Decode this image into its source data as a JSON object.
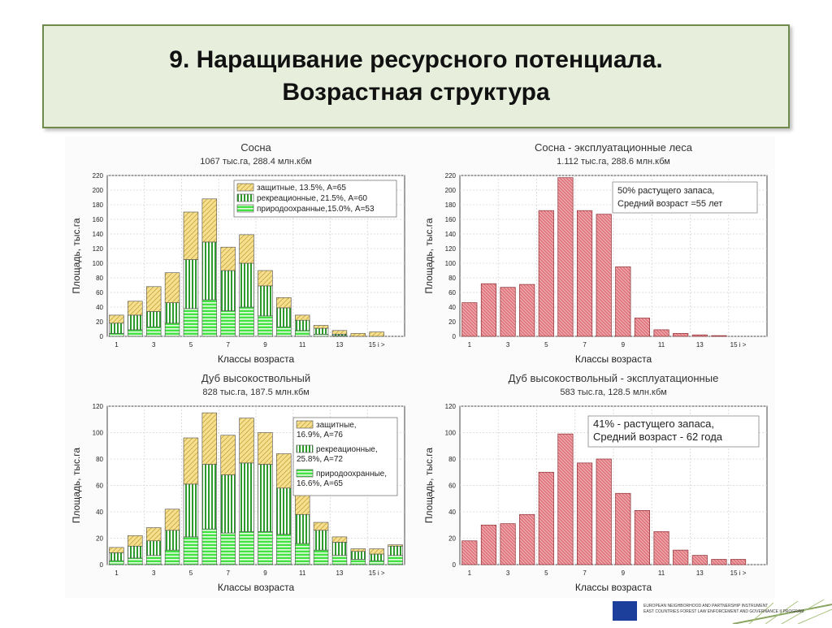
{
  "header": {
    "line1": "9. Наращивание ресурсного потенциала.",
    "line2": "Возрастная структура"
  },
  "footer": {
    "line1": "EUROPEAN NEIGHBORHOOD AND PARTNERSHIP INSTRUMENT",
    "line2": "EAST COUNTRIES FOREST LAW ENFORCEMENT AND GOVERNANCE II PROGRAM"
  },
  "colors": {
    "title_bg": "#e7efdc",
    "title_border": "#6f8a4a",
    "yellow": "#f6df8e",
    "green_dark": "#2e9a2e",
    "green_light": "#41e241",
    "red": "#e0797f"
  },
  "chart_data": [
    {
      "type": "bar",
      "stacked": true,
      "title": "Сосна",
      "subtitle": "1067 тыс.га, 288.4 млн.кбм",
      "xlabel": "Классы возраста",
      "ylabel": "Площадь, тыс.га",
      "ylim": [
        0,
        220
      ],
      "yticks": [
        0,
        20,
        40,
        60,
        80,
        100,
        120,
        140,
        160,
        180,
        200,
        220
      ],
      "x_tick_labels": [
        "1",
        "3",
        "5",
        "7",
        "9",
        "11",
        "13",
        "15 і >"
      ],
      "categories": [
        1,
        2,
        3,
        4,
        5,
        6,
        7,
        8,
        9,
        10,
        11,
        12,
        13,
        14,
        15,
        16
      ],
      "series": [
        {
          "name": "природоохранные,15.0%, A=53",
          "values": [
            4,
            9,
            13,
            18,
            38,
            50,
            35,
            40,
            28,
            13,
            8,
            3,
            1,
            0,
            0,
            0
          ]
        },
        {
          "name": "рекреационные, 21.5%, A=60",
          "values": [
            14,
            20,
            21,
            28,
            67,
            79,
            55,
            60,
            41,
            26,
            14,
            8,
            2,
            0,
            0,
            0
          ]
        },
        {
          "name": "защитные, 13.5%, A=65",
          "values": [
            11,
            19,
            34,
            41,
            65,
            59,
            32,
            39,
            21,
            14,
            7,
            4,
            5,
            4,
            6,
            0
          ]
        }
      ],
      "legend_position": "top-right"
    },
    {
      "type": "bar",
      "title": "Сосна - эксплуатационные леса",
      "subtitle": "1.112 тыс.га, 288.6 млн.кбм",
      "xlabel": "Классы возраста",
      "ylabel": "Площадь, тыс.га",
      "ylim": [
        0,
        220
      ],
      "yticks": [
        0,
        20,
        40,
        60,
        80,
        100,
        120,
        140,
        160,
        180,
        200,
        220
      ],
      "x_tick_labels": [
        "1",
        "3",
        "5",
        "7",
        "9",
        "11",
        "13",
        "15 і >"
      ],
      "categories": [
        1,
        2,
        3,
        4,
        5,
        6,
        7,
        8,
        9,
        10,
        11,
        12,
        13,
        14,
        15,
        16
      ],
      "values": [
        46,
        72,
        67,
        71,
        172,
        217,
        172,
        167,
        95,
        25,
        9,
        4,
        2,
        1,
        0,
        0
      ],
      "annotation": [
        "50% растущего запаса,",
        "Средний возраст =55 лет"
      ]
    },
    {
      "type": "bar",
      "stacked": true,
      "title": "Дуб высокоствольный",
      "subtitle": "828 тыс.га, 187.5 млн.кбм",
      "xlabel": "Классы возраста",
      "ylabel": "Площадь, тыс.га",
      "ylim": [
        0,
        120
      ],
      "yticks": [
        0,
        20,
        40,
        60,
        80,
        100,
        120
      ],
      "x_tick_labels": [
        "1",
        "3",
        "5",
        "7",
        "9",
        "11",
        "13",
        "15 і >"
      ],
      "categories": [
        1,
        2,
        3,
        4,
        5,
        6,
        7,
        8,
        9,
        10,
        11,
        12,
        13,
        14,
        15,
        16
      ],
      "series": [
        {
          "name": "природоохранные, 16.6%, A=65",
          "values": [
            3,
            5,
            7,
            11,
            21,
            27,
            24,
            25,
            25,
            23,
            16,
            11,
            7,
            4,
            3,
            7
          ]
        },
        {
          "name": "рекреационные, 25.8%, A=72",
          "values": [
            6,
            9,
            11,
            15,
            40,
            49,
            44,
            52,
            51,
            35,
            22,
            15,
            10,
            6,
            5,
            7
          ]
        },
        {
          "name": "защитные, 16.9%, A=76",
          "values": [
            4,
            8,
            10,
            16,
            35,
            39,
            30,
            34,
            24,
            26,
            16,
            6,
            4,
            2,
            4,
            1
          ]
        }
      ],
      "legend_position": "top-right"
    },
    {
      "type": "bar",
      "title": "Дуб высокоствольный - эксплуатационные",
      "subtitle": "583 тыс.га, 128.5 млн.кбм",
      "xlabel": "Классы возраста",
      "ylabel": "Площадь, тыс.га",
      "ylim": [
        0,
        120
      ],
      "yticks": [
        0,
        20,
        40,
        60,
        80,
        100,
        120
      ],
      "x_tick_labels": [
        "1",
        "3",
        "5",
        "7",
        "9",
        "11",
        "13",
        "15 і >"
      ],
      "categories": [
        1,
        2,
        3,
        4,
        5,
        6,
        7,
        8,
        9,
        10,
        11,
        12,
        13,
        14,
        15,
        16
      ],
      "values": [
        18,
        30,
        31,
        38,
        70,
        99,
        77,
        80,
        54,
        41,
        25,
        11,
        7,
        4,
        4,
        0
      ],
      "annotation": [
        "41% - растущего запаса,",
        "Средний возраст - 62 года"
      ]
    }
  ]
}
